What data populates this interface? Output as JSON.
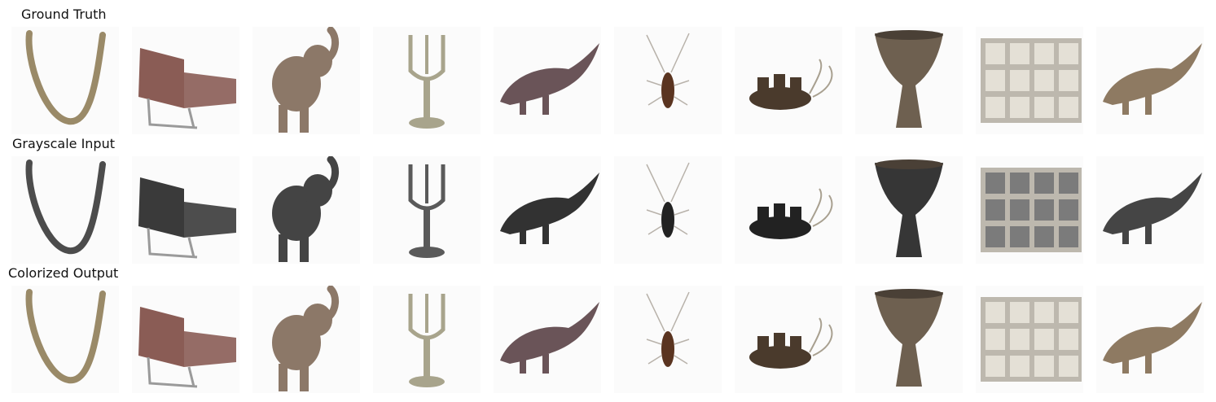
{
  "rows": [
    {
      "title": "Ground Truth",
      "mode": "color"
    },
    {
      "title": "Grayscale Input",
      "mode": "gray"
    },
    {
      "title": "Colorized Output",
      "mode": "color"
    }
  ],
  "items": [
    {
      "subject": "snake",
      "icon": "snake-icon",
      "color": "#9a8a68"
    },
    {
      "subject": "chair",
      "icon": "chair-icon",
      "color": "#8a5c55"
    },
    {
      "subject": "elephant",
      "icon": "elephant-icon",
      "color": "#8c7868"
    },
    {
      "subject": "goblet",
      "icon": "goblet-icon",
      "color": "#a8a48c"
    },
    {
      "subject": "dinosaur",
      "icon": "dinosaur-icon",
      "color": "#6a5458"
    },
    {
      "subject": "cockroach",
      "icon": "cockroach-icon",
      "color": "#5a3420"
    },
    {
      "subject": "crab-boat",
      "icon": "crab-icon",
      "color": "#4a3a2c"
    },
    {
      "subject": "djembe-drum",
      "icon": "drum-icon",
      "color": "#6e6050"
    },
    {
      "subject": "keyboard",
      "icon": "keyboard-icon",
      "color": "#e4e0d6"
    },
    {
      "subject": "dinosaur",
      "icon": "dinosaur-icon",
      "color": "#8e7a62"
    }
  ]
}
